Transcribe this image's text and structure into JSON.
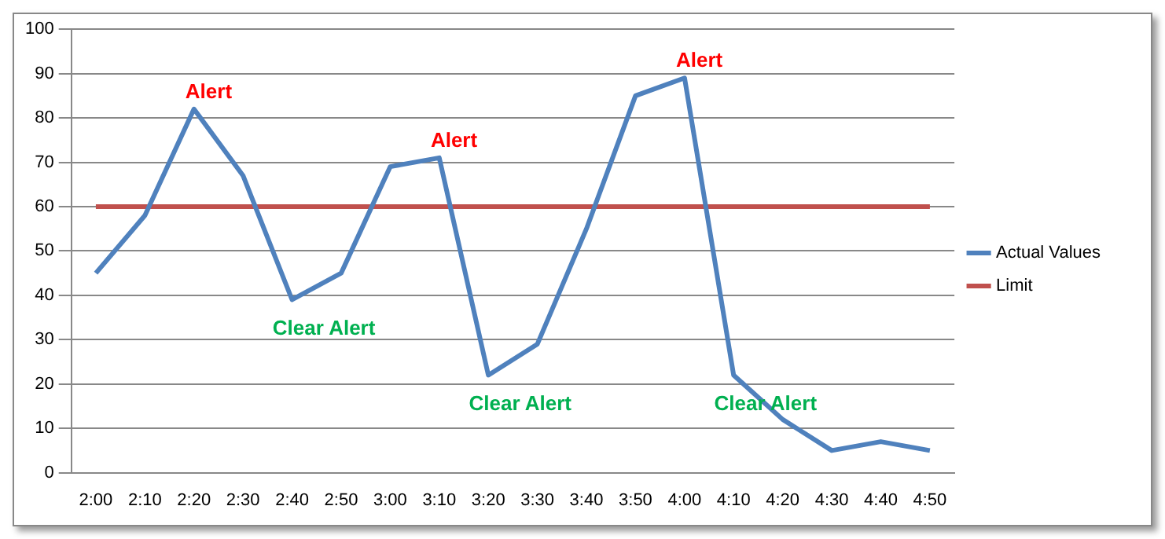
{
  "chart_data": {
    "type": "line",
    "categories": [
      "2:00",
      "2:10",
      "2:20",
      "2:30",
      "2:40",
      "2:50",
      "3:00",
      "3:10",
      "3:20",
      "3:30",
      "3:40",
      "3:50",
      "4:00",
      "4:10",
      "4:20",
      "4:30",
      "4:40",
      "4:50"
    ],
    "series": [
      {
        "name": "Actual Values",
        "color": "#4f81bd",
        "values": [
          45,
          58,
          82,
          67,
          39,
          45,
          69,
          71,
          22,
          29,
          55,
          85,
          89,
          22,
          12,
          5,
          7,
          5
        ]
      },
      {
        "name": "Limit",
        "color": "#c0504d",
        "values": [
          60,
          60,
          60,
          60,
          60,
          60,
          60,
          60,
          60,
          60,
          60,
          60,
          60,
          60,
          60,
          60,
          60,
          60
        ]
      }
    ],
    "ylim": [
      0,
      100
    ],
    "yticks": [
      0,
      10,
      20,
      30,
      40,
      50,
      60,
      70,
      80,
      90,
      100
    ],
    "grid": "y",
    "legend": "right",
    "marker": "none",
    "annotations": [
      {
        "text": "Alert",
        "x": "2:20",
        "y": 82
      },
      {
        "text": "Clear Alert",
        "x": "2:40",
        "y": 39
      },
      {
        "text": "Alert",
        "x": "3:10",
        "y": 71
      },
      {
        "text": "Clear Alert",
        "x": "3:20",
        "y": 22
      },
      {
        "text": "Alert",
        "x": "4:00",
        "y": 89
      },
      {
        "text": "Clear Alert",
        "x": "4:10",
        "y": 22
      }
    ]
  }
}
